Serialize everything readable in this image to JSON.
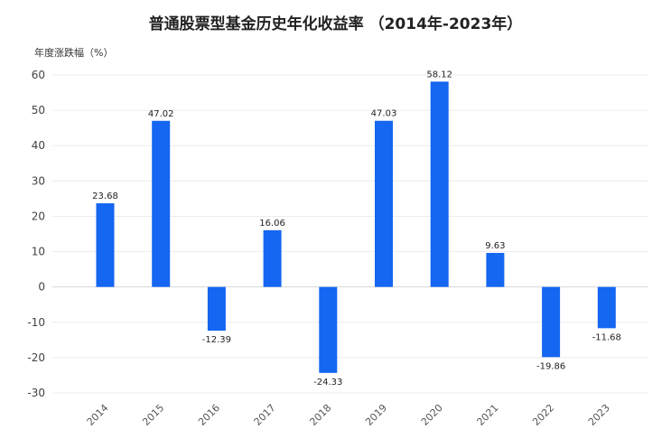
{
  "chart_data": {
    "type": "bar",
    "title": "普通股票型基金历史年化收益率 （2014年-2023年）",
    "ylabel": "年度涨跌幅（%）",
    "xlabel": "",
    "categories": [
      "2014",
      "2015",
      "2016",
      "2017",
      "2018",
      "2019",
      "2020",
      "2021",
      "2022",
      "2023"
    ],
    "values": [
      23.68,
      47.02,
      -12.39,
      16.06,
      -24.33,
      47.03,
      58.12,
      9.63,
      -19.86,
      -11.68
    ],
    "value_labels": [
      "23.68",
      "47.02",
      "-12.39",
      "16.06",
      "-24.33",
      "47.03",
      "58.12",
      "9.63",
      "-19.86",
      "-11.68"
    ],
    "ylim": [
      -30,
      60
    ],
    "yticks": [
      "60",
      "50",
      "40",
      "30",
      "20",
      "10",
      "0",
      "-10",
      "-20",
      "-30"
    ],
    "grid": true,
    "bar_color": "#1566f0"
  }
}
